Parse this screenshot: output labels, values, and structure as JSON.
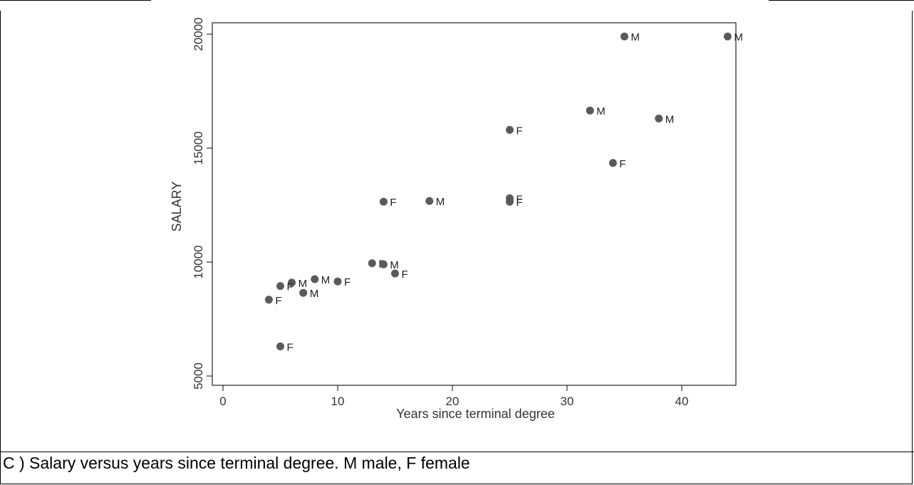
{
  "caption": "C )  Salary versus years since terminal degree. M male, F female",
  "colors": {
    "marker": "#5a5a5a",
    "axis": "#333333"
  },
  "chart_data": {
    "type": "scatter",
    "title": "",
    "xlabel": "Years since terminal degree",
    "ylabel": "SALARY",
    "xlim": [
      0,
      45
    ],
    "ylim": [
      5000,
      20500
    ],
    "xticks": [
      0,
      10,
      20,
      30,
      40
    ],
    "yticks": [
      5000,
      10000,
      15000,
      20000
    ],
    "grid": false,
    "points": [
      {
        "x": 35,
        "y": 19900,
        "label": "M"
      },
      {
        "x": 44,
        "y": 19900,
        "label": "M"
      },
      {
        "x": 32,
        "y": 16650,
        "label": "M"
      },
      {
        "x": 38,
        "y": 16300,
        "label": "M"
      },
      {
        "x": 25,
        "y": 15800,
        "label": "F"
      },
      {
        "x": 34,
        "y": 14350,
        "label": "F"
      },
      {
        "x": 25,
        "y": 12800,
        "label": "F"
      },
      {
        "x": 25,
        "y": 12650,
        "label": "F"
      },
      {
        "x": 14,
        "y": 12650,
        "label": "F"
      },
      {
        "x": 18,
        "y": 12680,
        "label": "M"
      },
      {
        "x": 13,
        "y": 9950,
        "label": "F"
      },
      {
        "x": 14,
        "y": 9900,
        "label": "M"
      },
      {
        "x": 15,
        "y": 9500,
        "label": "F"
      },
      {
        "x": 8,
        "y": 9250,
        "label": "M"
      },
      {
        "x": 10,
        "y": 9150,
        "label": "F"
      },
      {
        "x": 6,
        "y": 9100,
        "label": "M"
      },
      {
        "x": 5,
        "y": 8950,
        "label": "F"
      },
      {
        "x": 7,
        "y": 8650,
        "label": "M"
      },
      {
        "x": 4,
        "y": 8350,
        "label": "F"
      },
      {
        "x": 5,
        "y": 6300,
        "label": "F"
      }
    ]
  }
}
